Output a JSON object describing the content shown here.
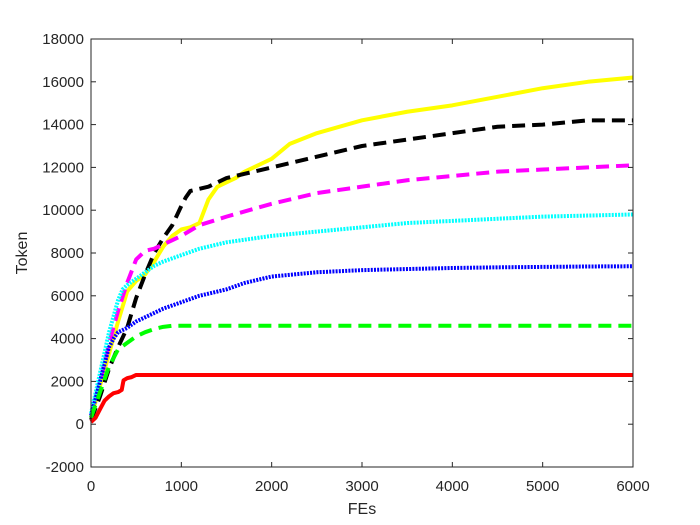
{
  "chart_data": {
    "type": "line",
    "title": "",
    "xlabel": "FEs",
    "ylabel": "Token",
    "xlim": [
      0,
      6000
    ],
    "ylim": [
      -2000,
      18000
    ],
    "xticks": [
      0,
      1000,
      2000,
      3000,
      4000,
      5000,
      6000
    ],
    "yticks": [
      -2000,
      0,
      2000,
      4000,
      6000,
      8000,
      10000,
      12000,
      14000,
      16000,
      18000
    ],
    "grid": false,
    "legend": "none",
    "series": [
      {
        "color": "#ffff00",
        "style": "solid",
        "x": [
          0,
          100,
          200,
          300,
          400,
          500,
          600,
          700,
          800,
          900,
          1000,
          1100,
          1200,
          1300,
          1400,
          1500,
          1600,
          1700,
          1800,
          1900,
          2000,
          2200,
          2500,
          3000,
          3500,
          4000,
          4500,
          5000,
          5500,
          6000
        ],
        "y": [
          300,
          1800,
          3300,
          4800,
          6200,
          6700,
          7000,
          7600,
          8300,
          8800,
          9100,
          9200,
          9400,
          10500,
          11100,
          11300,
          11500,
          11800,
          12000,
          12200,
          12400,
          13100,
          13600,
          14200,
          14600,
          14900,
          15300,
          15700,
          16000,
          16200
        ]
      },
      {
        "color": "#000000",
        "style": "dashed",
        "x": [
          0,
          100,
          200,
          300,
          400,
          500,
          600,
          700,
          800,
          900,
          1000,
          1050,
          1100,
          1200,
          1300,
          1400,
          1500,
          1600,
          1700,
          1800,
          2000,
          2500,
          3000,
          3500,
          4000,
          4500,
          5000,
          5500,
          6000
        ],
        "y": [
          200,
          1300,
          2600,
          3600,
          4500,
          5900,
          7000,
          8000,
          8700,
          9300,
          10200,
          10600,
          10900,
          11000,
          11100,
          11300,
          11500,
          11600,
          11700,
          11800,
          12000,
          12500,
          13000,
          13300,
          13600,
          13900,
          14000,
          14200,
          14200
        ]
      },
      {
        "color": "#ff00ff",
        "style": "dashed",
        "x": [
          0,
          100,
          200,
          300,
          400,
          500,
          600,
          700,
          800,
          900,
          1000,
          1200,
          1500,
          2000,
          2500,
          3000,
          3500,
          4000,
          4500,
          5000,
          5500,
          6000
        ],
        "y": [
          300,
          2000,
          3800,
          5300,
          6600,
          7700,
          8100,
          8200,
          8400,
          8600,
          8800,
          9300,
          9700,
          10300,
          10800,
          11100,
          11400,
          11600,
          11800,
          11900,
          12000,
          12100
        ]
      },
      {
        "color": "#00ffff",
        "style": "dotted",
        "x": [
          0,
          100,
          200,
          300,
          350,
          400,
          500,
          600,
          700,
          800,
          1000,
          1200,
          1500,
          2000,
          2500,
          3000,
          3500,
          4000,
          4500,
          5000,
          5500,
          6000
        ],
        "y": [
          500,
          2400,
          4300,
          5800,
          6300,
          6500,
          6800,
          7100,
          7400,
          7600,
          7900,
          8200,
          8500,
          8800,
          9000,
          9200,
          9400,
          9500,
          9600,
          9700,
          9750,
          9800
        ]
      },
      {
        "color": "#0000ff",
        "style": "dotted",
        "x": [
          0,
          100,
          200,
          250,
          300,
          400,
          500,
          600,
          700,
          800,
          1000,
          1200,
          1500,
          1700,
          2000,
          2500,
          3000,
          3500,
          4000,
          4500,
          5000,
          5500,
          6000
        ],
        "y": [
          400,
          2000,
          3600,
          4000,
          4300,
          4500,
          4800,
          5000,
          5200,
          5400,
          5700,
          6000,
          6300,
          6600,
          6900,
          7100,
          7200,
          7250,
          7300,
          7330,
          7350,
          7370,
          7380
        ]
      },
      {
        "color": "#00ff00",
        "style": "dashed",
        "x": [
          0,
          100,
          200,
          300,
          400,
          500,
          600,
          700,
          800,
          900,
          1000,
          1500,
          2000,
          3000,
          4000,
          5000,
          6000
        ],
        "y": [
          300,
          1500,
          2700,
          3500,
          3800,
          4100,
          4300,
          4450,
          4550,
          4600,
          4600,
          4600,
          4600,
          4600,
          4600,
          4600,
          4600
        ]
      },
      {
        "color": "#ff0000",
        "style": "solid",
        "x": [
          0,
          50,
          100,
          150,
          200,
          250,
          300,
          340,
          360,
          400,
          450,
          500,
          600,
          1000,
          2000,
          3000,
          4000,
          5000,
          6000
        ],
        "y": [
          100,
          300,
          700,
          1100,
          1300,
          1450,
          1500,
          1600,
          2050,
          2150,
          2200,
          2300,
          2300,
          2300,
          2300,
          2300,
          2300,
          2300,
          2300
        ]
      }
    ]
  }
}
